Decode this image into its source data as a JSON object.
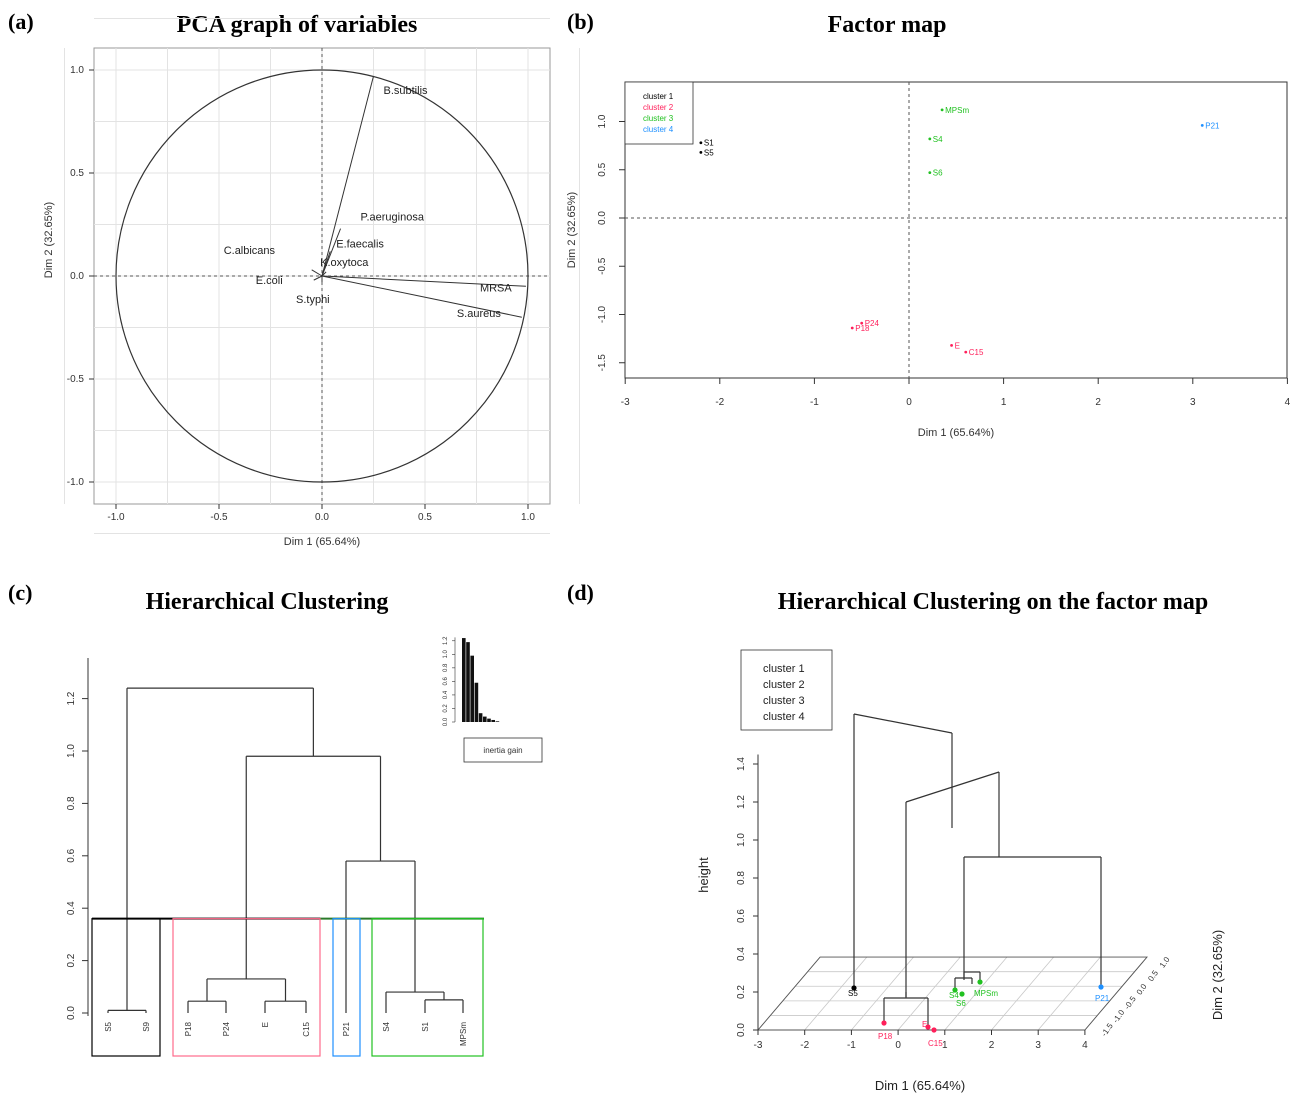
{
  "chart_data": [
    {
      "panel": "(a)",
      "type": "scatter",
      "title": "PCA graph of variables",
      "xlabel": "Dim 1 (65.64%)",
      "ylabel": "Dim 2 (32.65%)",
      "xlim": [
        -1.0,
        1.0
      ],
      "ylim": [
        -1.0,
        1.0
      ],
      "xticks": [
        "-1.0",
        "-0.5",
        "0.0",
        "0.5",
        "1.0"
      ],
      "yticks": [
        "-1.0",
        "-0.5",
        "0.0",
        "0.5",
        "1.0"
      ],
      "grid": true,
      "variables": [
        {
          "name": "B.subtilis",
          "x": 0.25,
          "y": 0.97
        },
        {
          "name": "P.aeruginosa",
          "x": 0.09,
          "y": 0.23
        },
        {
          "name": "E.faecalis",
          "x": 0.04,
          "y": 0.12
        },
        {
          "name": "C.albicans",
          "x": -0.05,
          "y": 0.03
        },
        {
          "name": "K.oxytoca",
          "x": 0.02,
          "y": 0.02
        },
        {
          "name": "E.coli",
          "x": -0.04,
          "y": -0.02
        },
        {
          "name": "S.typhi",
          "x": 0.0,
          "y": -0.03
        },
        {
          "name": "MRSA",
          "x": 0.99,
          "y": -0.05
        },
        {
          "name": "S.aureus",
          "x": 0.97,
          "y": -0.2
        }
      ]
    },
    {
      "panel": "(b)",
      "type": "scatter",
      "title": "Factor map",
      "xlabel": "Dim 1 (65.64%)",
      "ylabel": "Dim 2 (32.65%)",
      "xlim": [
        -3,
        4
      ],
      "ylim": [
        -1.5,
        1.0
      ],
      "xticks": [
        "-3",
        "-2",
        "-1",
        "0",
        "1",
        "2",
        "3",
        "4"
      ],
      "yticks": [
        "-1.5",
        "-1.0",
        "-0.5",
        "0.0",
        "0.5",
        "1.0"
      ],
      "legend": {
        "placement": "top-left",
        "entries": [
          "cluster 1",
          "cluster 2",
          "cluster 3",
          "cluster 4"
        ]
      },
      "cluster_colors": [
        "#000000",
        "#ff1f5a",
        "#21c121",
        "#1e90ff"
      ],
      "points": [
        {
          "label": "S1",
          "x": -2.2,
          "y": 0.78,
          "cluster": 1
        },
        {
          "label": "S5",
          "x": -2.2,
          "y": 0.68,
          "cluster": 1
        },
        {
          "label": "MPSm",
          "x": 0.35,
          "y": 1.12,
          "cluster": 3
        },
        {
          "label": "S4",
          "x": 0.22,
          "y": 0.82,
          "cluster": 3
        },
        {
          "label": "S6",
          "x": 0.22,
          "y": 0.47,
          "cluster": 3
        },
        {
          "label": "P21",
          "x": 3.1,
          "y": 0.96,
          "cluster": 4
        },
        {
          "label": "P18",
          "x": -0.6,
          "y": -1.14,
          "cluster": 2
        },
        {
          "label": "P24",
          "x": -0.5,
          "y": -1.09,
          "cluster": 2
        },
        {
          "label": "E",
          "x": 0.45,
          "y": -1.32,
          "cluster": 2
        },
        {
          "label": "C15",
          "x": 0.6,
          "y": -1.39,
          "cluster": 2
        }
      ]
    },
    {
      "panel": "(c)",
      "type": "dendrogram",
      "title": "Hierarchical Clustering",
      "ylim": [
        0,
        1.3
      ],
      "yticks": [
        "0.0",
        "0.2",
        "0.4",
        "0.6",
        "0.8",
        "1.0",
        "1.2"
      ],
      "cut_height": 0.36,
      "leaves": [
        "S5",
        "S9",
        "P18",
        "P24",
        "E",
        "C15",
        "P21",
        "S4",
        "S1",
        "MPSm"
      ],
      "merges": [
        {
          "left": "S5",
          "right": "S9",
          "height": 0.01
        },
        {
          "left": "S4",
          "right": "S1/MPSm",
          "height": 0.08
        },
        {
          "left": "S1",
          "right": "MPSm",
          "height": 0.05
        },
        {
          "left": "P18/P24",
          "right": "E/C15",
          "height": 0.13
        },
        {
          "left": "P21",
          "right": "cluster 3",
          "height": 0.58
        },
        {
          "left": "cluster 2",
          "right": "P21 + cluster 3",
          "height": 0.98
        },
        {
          "left": "cluster 1",
          "right": "rest",
          "height": 1.24
        }
      ],
      "inset": {
        "legend": "inertia gain",
        "bars": [
          1.24,
          1.18,
          0.98,
          0.58,
          0.13,
          0.08,
          0.05,
          0.03,
          0.01
        ]
      },
      "boxes": [
        "cluster 1",
        "cluster 2",
        "cluster 4",
        "cluster 3"
      ]
    },
    {
      "panel": "(d)",
      "type": "dendrogram-3d",
      "title": "Hierarchical Clustering on the factor map",
      "xlabel": "Dim 1 (65.64%)",
      "ylabel": "Dim 2 (32.65%)",
      "zlabel": "height",
      "xticks": [
        "-3",
        "-2",
        "-1",
        "0",
        "1",
        "2",
        "3",
        "4"
      ],
      "zticks": [
        "0.0",
        "0.2",
        "0.4",
        "0.6",
        "0.8",
        "1.0",
        "1.2",
        "1.4"
      ],
      "dim2_ticks": [
        "-1.5",
        "-1.0",
        "-0.5",
        "0.0",
        "0.5",
        "1.0"
      ],
      "legend": {
        "placement": "top-left",
        "entries": [
          "cluster 1",
          "cluster 2",
          "cluster 3",
          "cluster 4"
        ]
      },
      "point_labels": [
        "S5",
        "P18",
        "E",
        "C15",
        "S4",
        "MPSm",
        "S6",
        "P21"
      ]
    }
  ]
}
